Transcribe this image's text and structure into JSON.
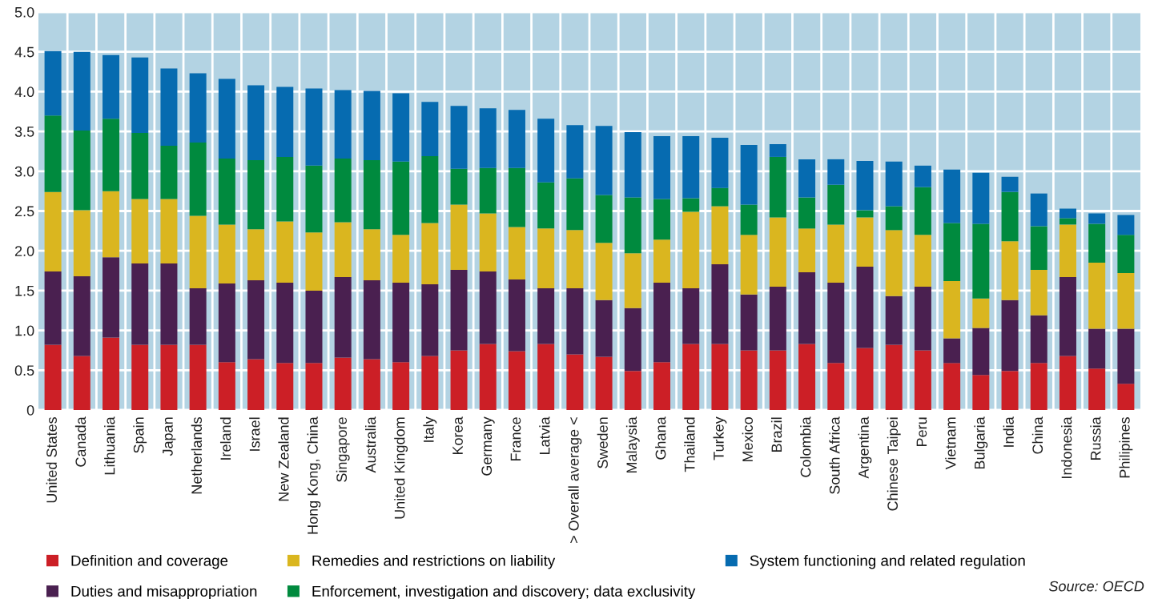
{
  "chart_data": {
    "type": "bar",
    "stacked": true,
    "categories": [
      "United States",
      "Canada",
      "Lithuania",
      "Spain",
      "Japan",
      "Netherlands",
      "Ireland",
      "Israel",
      "New Zealand",
      "Hong Kong, China",
      "Singapore",
      "Australia",
      "United Kingdom",
      "Italy",
      "Korea",
      "Germany",
      "France",
      "Latvia",
      "> Overall average <",
      "Sweden",
      "Malaysia",
      "Ghana",
      "Thailand",
      "Turkey",
      "Mexico",
      "Brazil",
      "Colombia",
      "South Africa",
      "Argentina",
      "Chinese Taipei",
      "Peru",
      "Vietnam",
      "Bulgaria",
      "India",
      "China",
      "Indonesia",
      "Russia",
      "Philipines"
    ],
    "series": [
      {
        "name": "Definition and coverage",
        "color": "#cc1f26",
        "values": [
          0.82,
          0.68,
          0.91,
          0.82,
          0.82,
          0.82,
          0.6,
          0.64,
          0.59,
          0.59,
          0.66,
          0.64,
          0.6,
          0.68,
          0.75,
          0.83,
          0.74,
          0.83,
          0.7,
          0.67,
          0.49,
          0.6,
          0.83,
          0.83,
          0.75,
          0.75,
          0.83,
          0.59,
          0.78,
          0.82,
          0.75,
          0.59,
          0.44,
          0.49,
          0.59,
          0.68,
          0.52,
          0.33
        ]
      },
      {
        "name": "Duties and misappropriation",
        "color": "#4a2050",
        "values": [
          0.92,
          1.0,
          1.01,
          1.02,
          1.02,
          0.71,
          0.99,
          0.99,
          1.01,
          0.91,
          1.01,
          0.99,
          1.0,
          0.9,
          1.01,
          0.91,
          0.9,
          0.7,
          0.83,
          0.71,
          0.79,
          1.0,
          0.7,
          1.0,
          0.7,
          0.8,
          0.9,
          1.01,
          1.02,
          0.61,
          0.8,
          0.31,
          0.59,
          0.89,
          0.6,
          0.99,
          0.5,
          0.69
        ]
      },
      {
        "name": "Remedies and restrictions on liability",
        "color": "#dab61f",
        "values": [
          1.0,
          0.83,
          0.83,
          0.81,
          0.81,
          0.91,
          0.74,
          0.64,
          0.77,
          0.73,
          0.69,
          0.64,
          0.6,
          0.77,
          0.82,
          0.73,
          0.66,
          0.75,
          0.73,
          0.72,
          0.69,
          0.54,
          0.96,
          0.73,
          0.75,
          0.87,
          0.55,
          0.73,
          0.62,
          0.83,
          0.65,
          0.72,
          0.37,
          0.74,
          0.57,
          0.66,
          0.83,
          0.7
        ]
      },
      {
        "name": "Enforcement, investigation and discovery; data exclusivity",
        "color": "#008a3e",
        "values": [
          0.96,
          1.0,
          0.91,
          0.83,
          0.67,
          0.92,
          0.83,
          0.87,
          0.81,
          0.84,
          0.8,
          0.87,
          0.92,
          0.84,
          0.45,
          0.57,
          0.74,
          0.58,
          0.65,
          0.6,
          0.7,
          0.51,
          0.17,
          0.23,
          0.38,
          0.76,
          0.39,
          0.5,
          0.09,
          0.3,
          0.6,
          0.73,
          0.94,
          0.62,
          0.55,
          0.08,
          0.49,
          0.48
        ]
      },
      {
        "name": "System functioning and related regulation",
        "color": "#066bb0",
        "values": [
          0.81,
          0.99,
          0.8,
          0.95,
          0.97,
          0.87,
          1.0,
          0.94,
          0.88,
          0.97,
          0.86,
          0.87,
          0.86,
          0.68,
          0.79,
          0.75,
          0.73,
          0.8,
          0.67,
          0.87,
          0.82,
          0.79,
          0.78,
          0.63,
          0.75,
          0.16,
          0.48,
          0.32,
          0.62,
          0.56,
          0.27,
          0.67,
          0.64,
          0.19,
          0.41,
          0.12,
          0.13,
          0.25
        ]
      }
    ],
    "ylim": [
      0,
      5.0
    ],
    "yticks": [
      0,
      {
        "value": 0.5,
        "label": "0.5"
      },
      {
        "value": 1.0,
        "label": "1.0"
      },
      {
        "value": 1.5,
        "label": "1.5"
      },
      {
        "value": 2.0,
        "label": "2.0"
      },
      {
        "value": 2.5,
        "label": "2.5"
      },
      {
        "value": 3.0,
        "label": "3.0"
      },
      {
        "value": 3.5,
        "label": "3.5"
      },
      {
        "value": 4.0,
        "label": "4.0"
      },
      {
        "value": 4.5,
        "label": "4.5"
      },
      {
        "value": 5.0,
        "label": "5.0"
      }
    ],
    "grid": true,
    "legend": "bottom",
    "annotations": [
      "Source: OECD"
    ]
  }
}
